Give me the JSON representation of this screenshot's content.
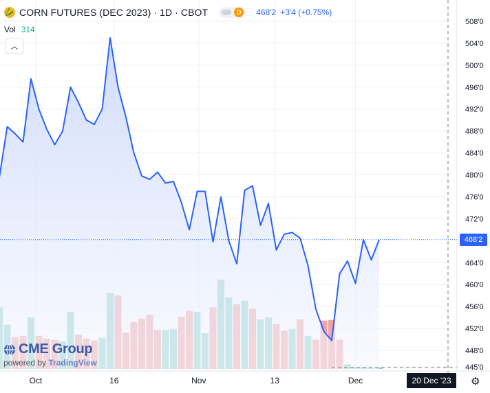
{
  "header": {
    "title": "CORN FUTURES (DEC 2023) · 1D · CBOT",
    "price": "468'2",
    "change": "+3'4 (+0.75%)",
    "delay_badge": "D"
  },
  "volume": {
    "label": "Vol",
    "value": "314"
  },
  "logo": {
    "name": "CME Group",
    "powered_prefix": "powered by",
    "powered_brand": "TradingView"
  },
  "crosshair": {
    "date_label": "20 Dec '23",
    "price_label": "468'2"
  },
  "colors": {
    "line": "#2962ff",
    "fill": "#dfe6fd",
    "vol_up": "#8fd1c8",
    "vol_down": "#f2a3a3",
    "grid": "#eceff5",
    "axis_text": "#131722"
  },
  "chart_data": {
    "type": "area",
    "title": "CORN FUTURES (DEC 2023) · 1D · CBOT",
    "price_axis": {
      "min": 445.0,
      "max": 510.0,
      "ticks": [
        508.0,
        504.0,
        500.0,
        496.0,
        492.0,
        488.0,
        484.0,
        480.0,
        476.0,
        472.0,
        464.0,
        460.0,
        456.0,
        452.0,
        448.0,
        445.0
      ],
      "tick_labels": [
        "508'0",
        "504'0",
        "500'0",
        "496'0",
        "492'0",
        "488'0",
        "484'0",
        "480'0",
        "476'0",
        "472'0",
        "464'0",
        "460'0",
        "456'0",
        "452'0",
        "448'0",
        "445'0"
      ],
      "position": "right"
    },
    "x_axis": {
      "tick_labels": [
        "Oct",
        "16",
        "Nov",
        "13",
        "Dec"
      ],
      "tick_index": [
        4.6,
        14.5,
        25.2,
        34.8,
        45.0
      ]
    },
    "series": [
      {
        "values": [
          479.5,
          488.8,
          487.5,
          486.0,
          497.5,
          492.0,
          488.3,
          485.5,
          488.0,
          496.0,
          493.2,
          490.0,
          489.2,
          492.0,
          505.0,
          496.0,
          490.5,
          484.0,
          479.8,
          479.2,
          480.5,
          478.5,
          478.8,
          475.0,
          470.0,
          477.0,
          477.0,
          467.8,
          476.0,
          468.0,
          463.8,
          477.2,
          478.0,
          470.8,
          474.8,
          466.3,
          469.2,
          469.5,
          468.5,
          463.5,
          455.5,
          451.5,
          449.8,
          462.0,
          464.3,
          460.2,
          468.2,
          464.5,
          468.2
        ]
      }
    ],
    "volume_bars": [
      {
        "dir": "up",
        "v": 93
      },
      {
        "dir": "up",
        "v": 67
      },
      {
        "dir": "down",
        "v": 48
      },
      {
        "dir": "down",
        "v": 50
      },
      {
        "dir": "up",
        "v": 78
      },
      {
        "dir": "down",
        "v": 50
      },
      {
        "dir": "down",
        "v": 46
      },
      {
        "dir": "down",
        "v": 44
      },
      {
        "dir": "up",
        "v": 42
      },
      {
        "dir": "up",
        "v": 86
      },
      {
        "dir": "down",
        "v": 52
      },
      {
        "dir": "down",
        "v": 46
      },
      {
        "dir": "down",
        "v": 43
      },
      {
        "dir": "up",
        "v": 47
      },
      {
        "dir": "up",
        "v": 115
      },
      {
        "dir": "down",
        "v": 111
      },
      {
        "dir": "down",
        "v": 55
      },
      {
        "dir": "down",
        "v": 71
      },
      {
        "dir": "down",
        "v": 76
      },
      {
        "dir": "down",
        "v": 82
      },
      {
        "dir": "down",
        "v": 59
      },
      {
        "dir": "up",
        "v": 59
      },
      {
        "dir": "up",
        "v": 60
      },
      {
        "dir": "down",
        "v": 79
      },
      {
        "dir": "down",
        "v": 88
      },
      {
        "dir": "up",
        "v": 86
      },
      {
        "dir": "up",
        "v": 54
      },
      {
        "dir": "down",
        "v": 93
      },
      {
        "dir": "up",
        "v": 135
      },
      {
        "dir": "up",
        "v": 108
      },
      {
        "dir": "down",
        "v": 98
      },
      {
        "dir": "up",
        "v": 103
      },
      {
        "dir": "down",
        "v": 91
      },
      {
        "dir": "up",
        "v": 75
      },
      {
        "dir": "up",
        "v": 78
      },
      {
        "dir": "down",
        "v": 68
      },
      {
        "dir": "down",
        "v": 58
      },
      {
        "dir": "up",
        "v": 60
      },
      {
        "dir": "down",
        "v": 75
      },
      {
        "dir": "up",
        "v": 50
      },
      {
        "dir": "down",
        "v": 44
      },
      {
        "dir": "down",
        "v": 73
      },
      {
        "dir": "down",
        "v": 74
      },
      {
        "dir": "down",
        "v": 44
      },
      {
        "dir": "up",
        "v": 7
      },
      {
        "dir": "up",
        "v": 3
      },
      {
        "dir": "up",
        "v": 3
      },
      {
        "dir": "up",
        "v": 2
      },
      {
        "dir": "up",
        "v": 2
      }
    ],
    "last_price": 468.2,
    "grid": true,
    "legend": "top-left"
  }
}
